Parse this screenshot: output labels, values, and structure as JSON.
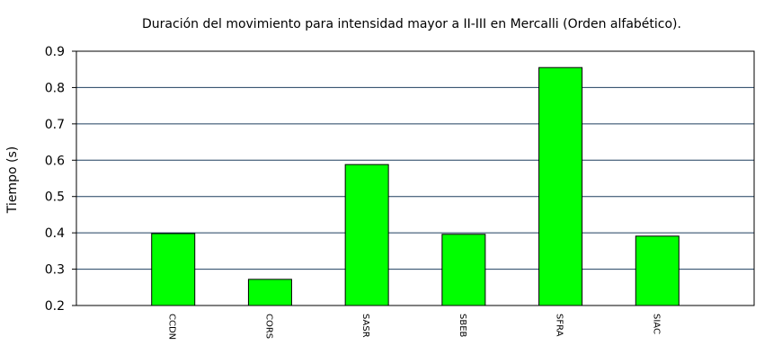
{
  "chart_data": {
    "type": "bar",
    "title": "Duración del movimiento para intensidad mayor a II-III en Mercalli (Orden alfabético).",
    "xlabel": "",
    "ylabel": "Tiempo (s)",
    "categories": [
      "CCDN",
      "CORS",
      "SASR",
      "SBEB",
      "SFRA",
      "SIAC"
    ],
    "values": [
      0.398,
      0.272,
      0.588,
      0.396,
      0.855,
      0.391
    ],
    "ylim": [
      0.2,
      0.9
    ],
    "yticks": [
      "0.2",
      "0.3",
      "0.4",
      "0.5",
      "0.6",
      "0.7",
      "0.8",
      "0.9"
    ],
    "grid": true,
    "legend": "none",
    "colors": {
      "bar": "#00ff00",
      "grid": "#1f3f5f",
      "axis": "#000000"
    }
  }
}
